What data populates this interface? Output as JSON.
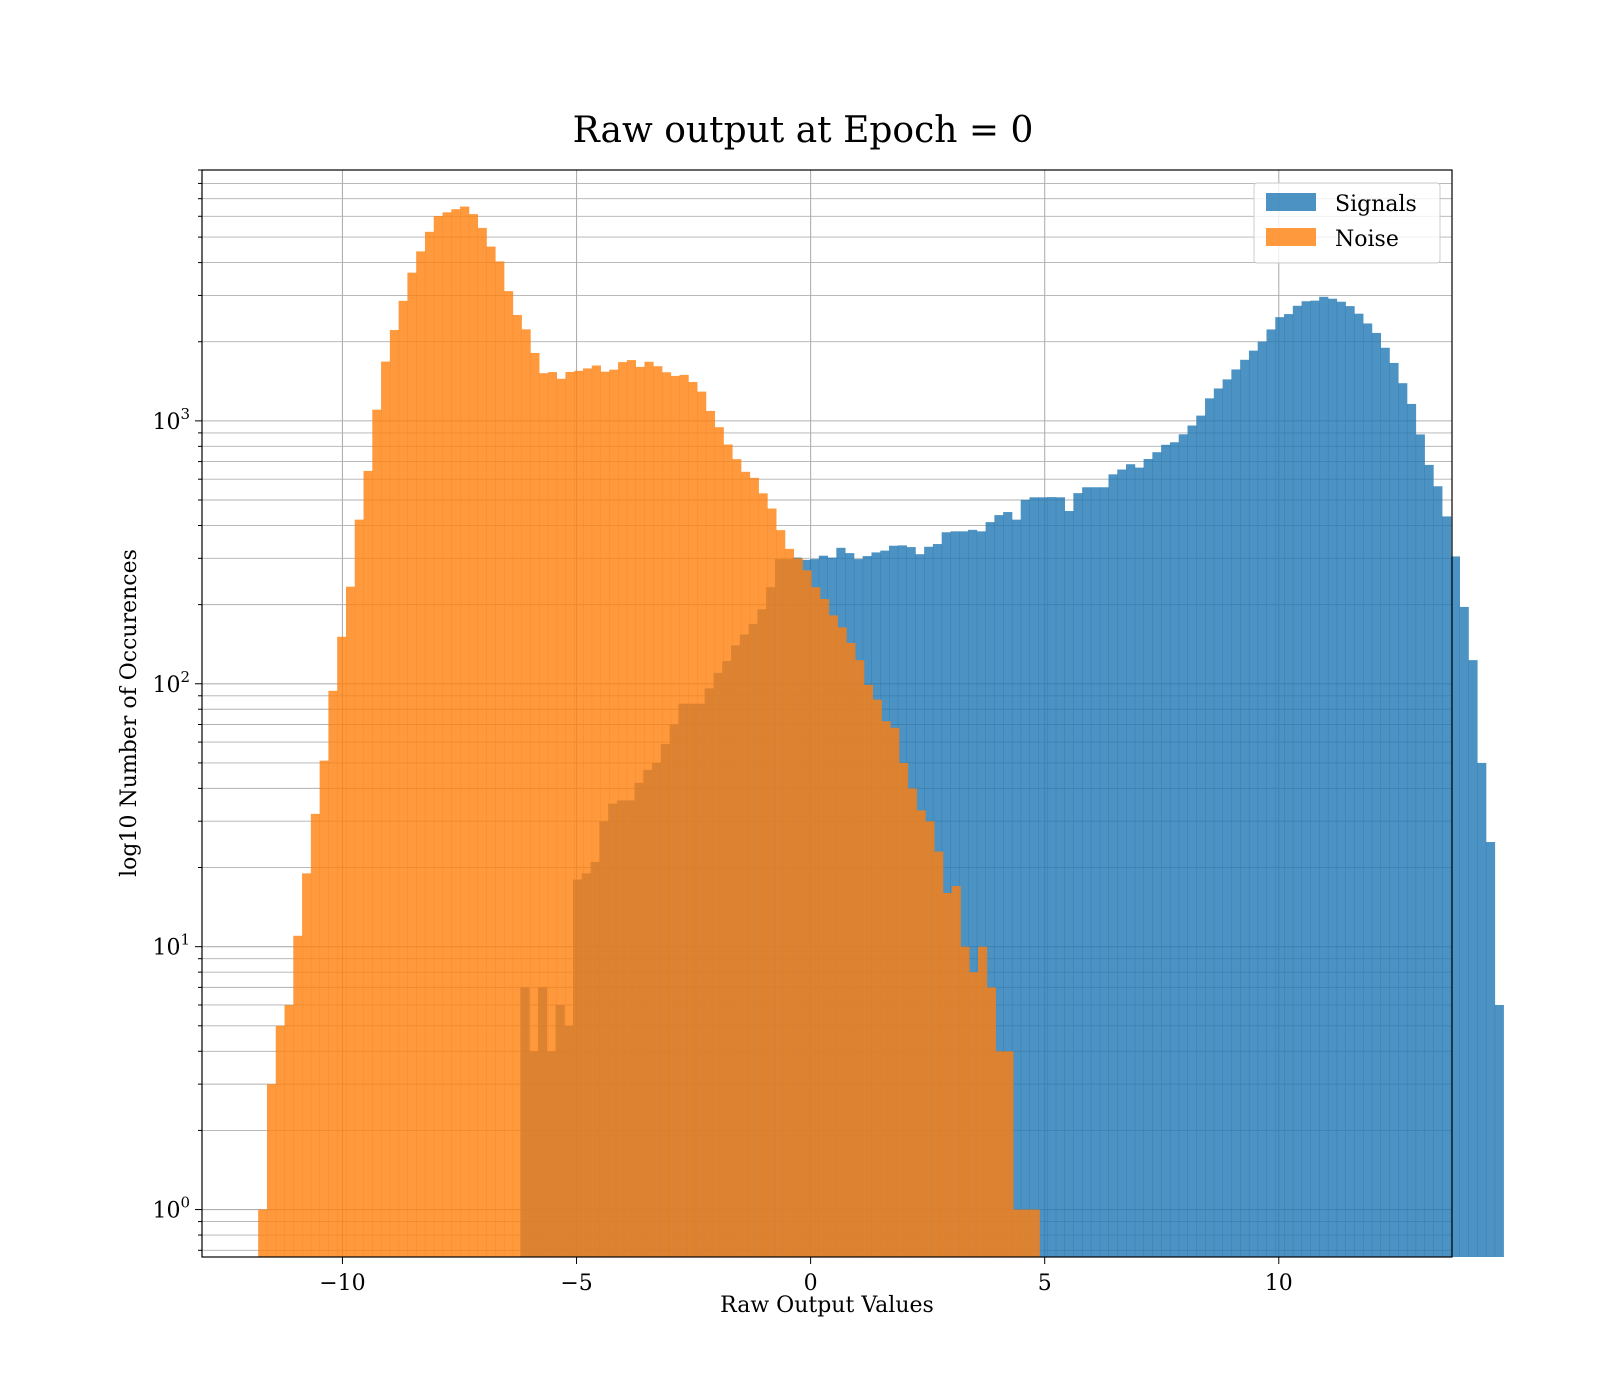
{
  "chart_data": {
    "type": "bar",
    "title": "Raw output at Epoch = 0",
    "xlabel": "Raw Output Values",
    "ylabel": "log10 Number of Occurences",
    "yscale": "log",
    "xlim": [
      -13,
      13.7
    ],
    "ylim": [
      0.66,
      9000
    ],
    "grid": true,
    "legend_position": "top-right",
    "x_ticks": [
      {
        "value": -10,
        "label": "−10"
      },
      {
        "value": -5,
        "label": "−5"
      },
      {
        "value": 0,
        "label": "0"
      },
      {
        "value": 5,
        "label": "5"
      },
      {
        "value": 10,
        "label": "10"
      }
    ],
    "y_ticks": [
      {
        "value": 1,
        "base": "10",
        "exp": "0"
      },
      {
        "value": 10,
        "base": "10",
        "exp": "1"
      },
      {
        "value": 100,
        "base": "10",
        "exp": "2"
      },
      {
        "value": 1000,
        "base": "10",
        "exp": "3"
      }
    ],
    "series": [
      {
        "name": "Signals",
        "color": "#1f77b4",
        "opacity": 0.8,
        "bin_start": -6.2,
        "bin_width": 0.1875,
        "counts": [
          7,
          4,
          7,
          4,
          6,
          5,
          18,
          19,
          21,
          30,
          35,
          36,
          36,
          42,
          47,
          50,
          59,
          70,
          84,
          84,
          84,
          96,
          110,
          122,
          140,
          154,
          169,
          192,
          233,
          298,
          298,
          302,
          296,
          298,
          307,
          302,
          329,
          314,
          298,
          306,
          316,
          321,
          335,
          336,
          331,
          311,
          332,
          340,
          377,
          380,
          380,
          385,
          380,
          412,
          438,
          450,
          421,
          501,
          512,
          512,
          513,
          512,
          454,
          531,
          559,
          559,
          559,
          626,
          653,
          684,
          664,
          716,
          760,
          811,
          829,
          889,
          960,
          1047,
          1218,
          1328,
          1438,
          1569,
          1707,
          1850,
          2003,
          2227,
          2480,
          2548,
          2740,
          2851,
          2866,
          2964,
          2915,
          2839,
          2732,
          2557,
          2347,
          2160,
          1897,
          1661,
          1391,
          1160,
          888,
          680,
          564,
          433,
          305,
          196,
          123,
          50,
          25,
          6
        ]
      },
      {
        "name": "Noise",
        "color": "#ff7f0e",
        "opacity": 0.8,
        "bin_start": -11.8,
        "bin_width": 0.1875,
        "counts": [
          1,
          3,
          5,
          6,
          11,
          19,
          32,
          51,
          94,
          151,
          234,
          421,
          645,
          1103,
          1681,
          2217,
          2861,
          3662,
          4413,
          5236,
          6016,
          6213,
          6385,
          6535,
          6114,
          5418,
          4602,
          4040,
          3116,
          2528,
          2229,
          1813,
          1518,
          1533,
          1445,
          1535,
          1550,
          1583,
          1624,
          1538,
          1566,
          1673,
          1703,
          1604,
          1678,
          1614,
          1531,
          1482,
          1496,
          1406,
          1292,
          1091,
          946,
          813,
          715,
          640,
          607,
          530,
          464,
          384,
          326,
          300,
          270,
          233,
          210,
          182,
          164,
          143,
          123,
          99,
          87,
          72,
          68,
          50,
          40,
          33,
          30,
          23,
          16,
          17,
          10,
          8,
          10,
          7,
          4,
          4,
          1,
          1,
          1
        ]
      }
    ]
  }
}
